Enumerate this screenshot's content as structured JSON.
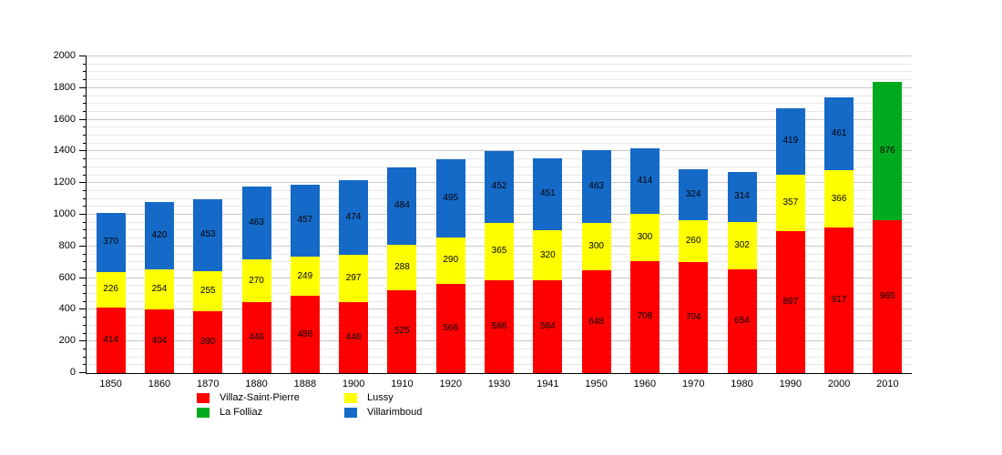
{
  "figure": {
    "background": "#ffffff",
    "axis_color": "#000000",
    "grid_major_color": "#c8c8c8",
    "grid_minor_color": "#e8e8e8"
  },
  "chart_data": {
    "type": "bar",
    "stacked": true,
    "title": "",
    "xlabel": "",
    "ylabel": "",
    "ylim": [
      0,
      2000
    ],
    "y_major_step": 200,
    "y_minor_step": 50,
    "grid": true,
    "legend_position": "bottom",
    "categories": [
      "1850",
      "1860",
      "1870",
      "1880",
      "1888",
      "1900",
      "1910",
      "1920",
      "1930",
      "1941",
      "1950",
      "1960",
      "1970",
      "1980",
      "1990",
      "2000",
      "2010"
    ],
    "series": [
      {
        "name": "Villaz-Saint-Pierre",
        "color": "#ff0000",
        "values": [
          414,
          404,
          390,
          446,
          486,
          448,
          525,
          566,
          586,
          584,
          648,
          708,
          704,
          654,
          897,
          917,
          965
        ]
      },
      {
        "name": "Lussy",
        "color": "#ffff00",
        "values": [
          226,
          254,
          255,
          270,
          249,
          297,
          288,
          290,
          365,
          320,
          300,
          300,
          260,
          302,
          357,
          366,
          0
        ]
      },
      {
        "name": "Villarimboud",
        "color": "#1569c7",
        "values": [
          370,
          420,
          453,
          463,
          457,
          474,
          484,
          495,
          452,
          451,
          463,
          414,
          324,
          314,
          419,
          461,
          0
        ]
      },
      {
        "name": "La Folliaz",
        "color": "#00aa1e",
        "values": [
          0,
          0,
          0,
          0,
          0,
          0,
          0,
          0,
          0,
          0,
          0,
          0,
          0,
          0,
          0,
          0,
          876
        ]
      }
    ],
    "y_tick_labels": [
      "0",
      "200",
      "400",
      "600",
      "800",
      "1000",
      "1200",
      "1400",
      "1600",
      "1800",
      "2000"
    ]
  },
  "legend": {
    "items": [
      {
        "label": "Villaz-Saint-Pierre",
        "color": "#ff0000"
      },
      {
        "label": "Lussy",
        "color": "#ffff00"
      },
      {
        "label": "La Folliaz",
        "color": "#00aa1e"
      },
      {
        "label": "Villarimboud",
        "color": "#1569c7"
      }
    ]
  }
}
